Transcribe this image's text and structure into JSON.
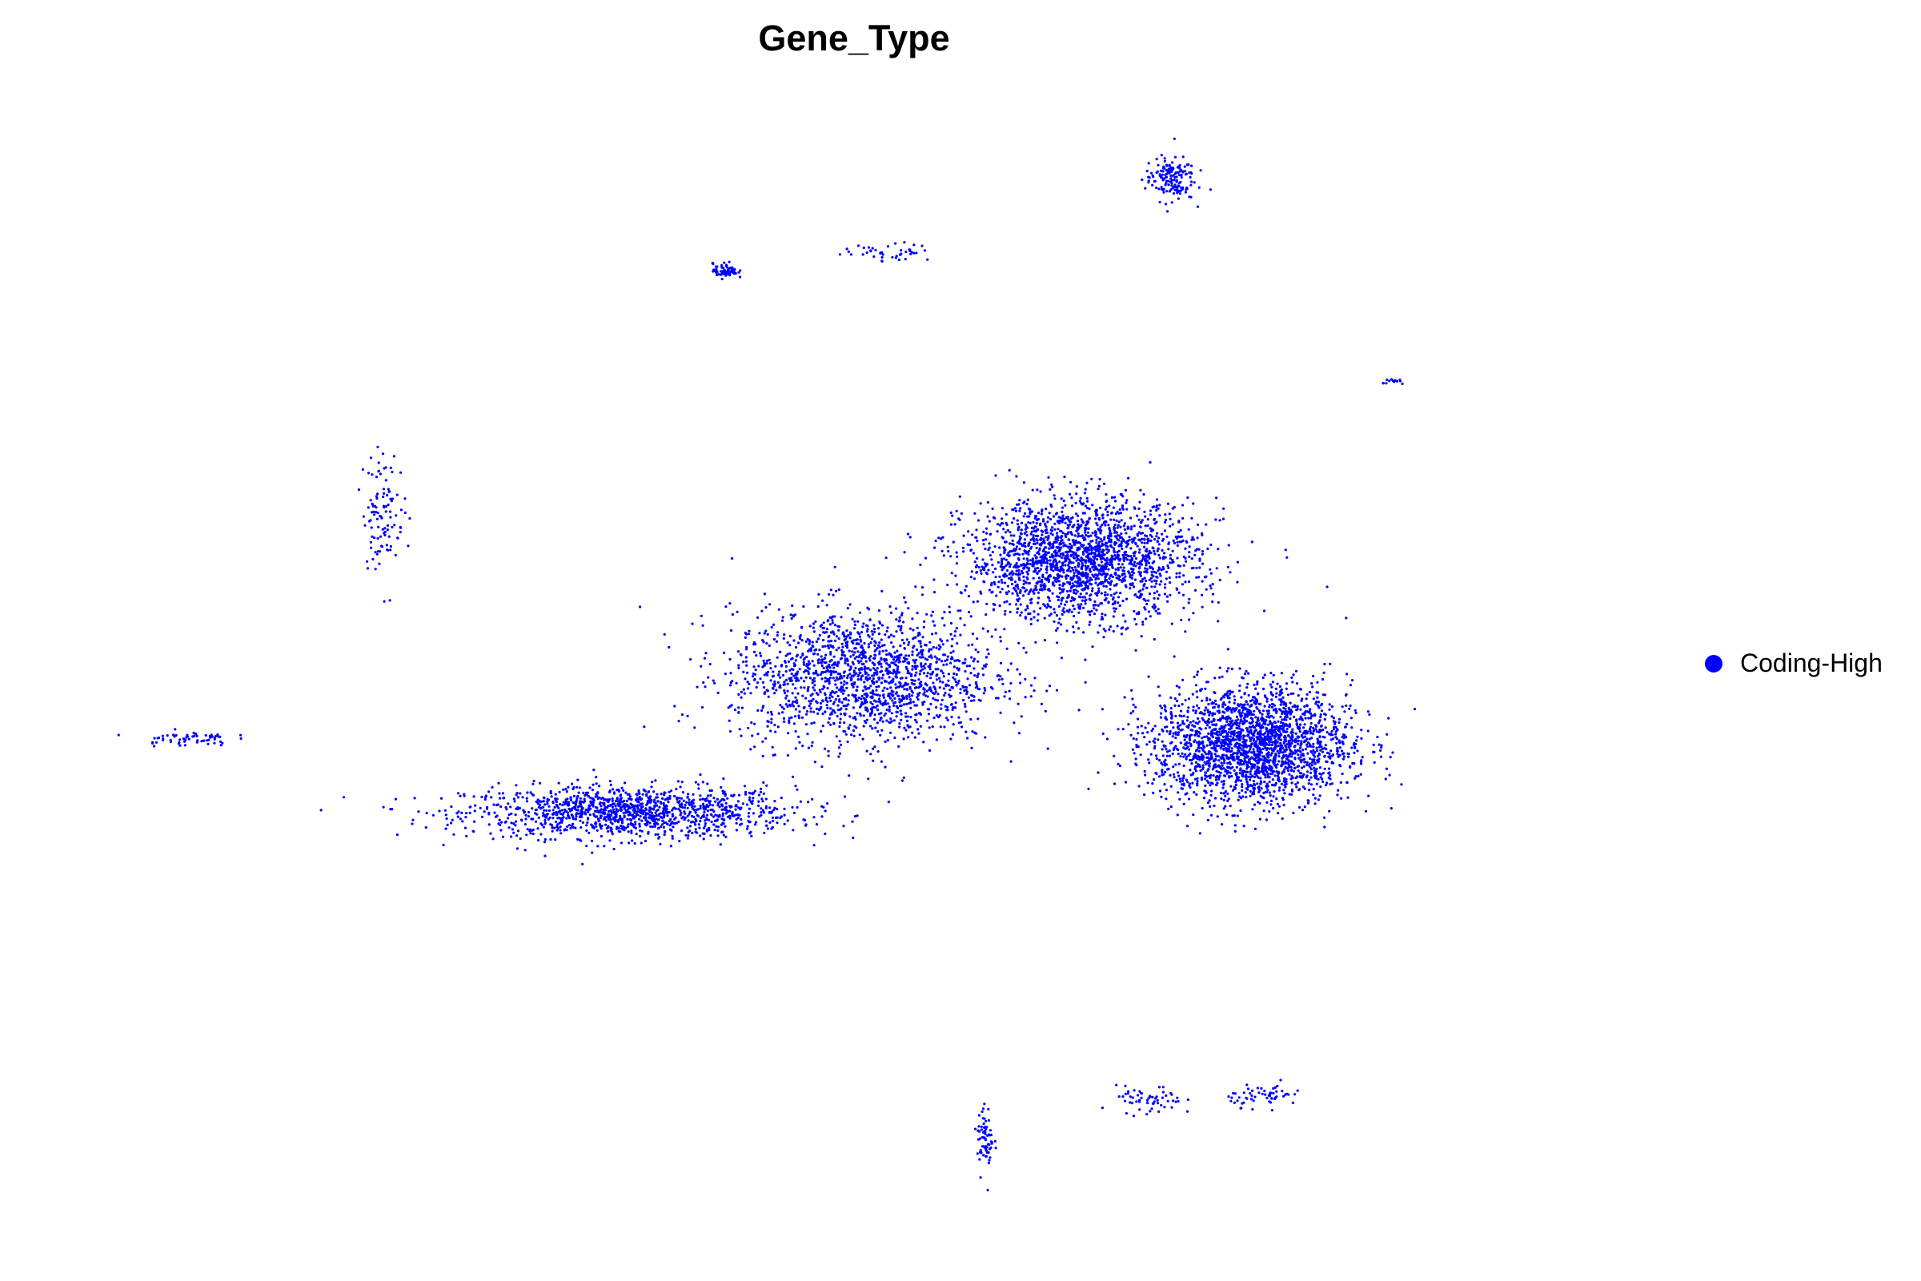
{
  "chart_data": {
    "type": "scatter",
    "title": "Gene_Type",
    "xlabel": "",
    "ylabel": "",
    "axes_visible": false,
    "grid": false,
    "legend_position": "right",
    "series": [
      {
        "name": "Coding-High",
        "color": "#0000FF",
        "clusters": [
          {
            "label": "main-left-tail",
            "center": [
              -3.2,
              -1.9
            ],
            "spread": [
              2.0,
              0.35
            ],
            "count": 1300
          },
          {
            "label": "main-middle",
            "center": [
              0.2,
              0.3
            ],
            "spread": [
              1.6,
              0.9
            ],
            "count": 1700
          },
          {
            "label": "main-upper",
            "center": [
              3.4,
              2.2
            ],
            "spread": [
              1.4,
              0.8
            ],
            "count": 2100
          },
          {
            "label": "main-right",
            "center": [
              5.9,
              -0.8
            ],
            "spread": [
              1.2,
              0.8
            ],
            "count": 2300
          },
          {
            "label": "upper-right-cluster",
            "center": [
              4.7,
              8.4
            ],
            "spread": [
              0.3,
              0.3
            ],
            "count": 160
          },
          {
            "label": "upper-small-blob",
            "center": [
              -1.8,
              6.9
            ],
            "spread": [
              0.15,
              0.1
            ],
            "count": 70
          },
          {
            "label": "upper-streak",
            "center": [
              0.6,
              7.2
            ],
            "spread": [
              0.55,
              0.12
            ],
            "count": 45
          },
          {
            "label": "left-streak",
            "center": [
              -6.8,
              3.0
            ],
            "spread": [
              0.25,
              0.8
            ],
            "count": 110
          },
          {
            "label": "far-left-streak",
            "center": [
              -9.7,
              -0.7
            ],
            "spread": [
              0.55,
              0.1
            ],
            "count": 60
          },
          {
            "label": "bottom-streak-1",
            "center": [
              2.0,
              -7.2
            ],
            "spread": [
              0.1,
              0.45
            ],
            "count": 70
          },
          {
            "label": "bottom-streak-2",
            "center": [
              4.4,
              -6.6
            ],
            "spread": [
              0.4,
              0.2
            ],
            "count": 60
          },
          {
            "label": "bottom-streak-3",
            "center": [
              6.1,
              -6.5
            ],
            "spread": [
              0.45,
              0.15
            ],
            "count": 60
          },
          {
            "label": "right-small-streak",
            "center": [
              8.0,
              5.1
            ],
            "spread": [
              0.15,
              0.05
            ],
            "count": 15
          }
        ]
      }
    ],
    "xlim": [
      -11,
      11
    ],
    "ylim": [
      -9,
      10
    ]
  },
  "legend": {
    "items": [
      {
        "label": "Coding-High",
        "color": "#0000FF"
      }
    ]
  }
}
